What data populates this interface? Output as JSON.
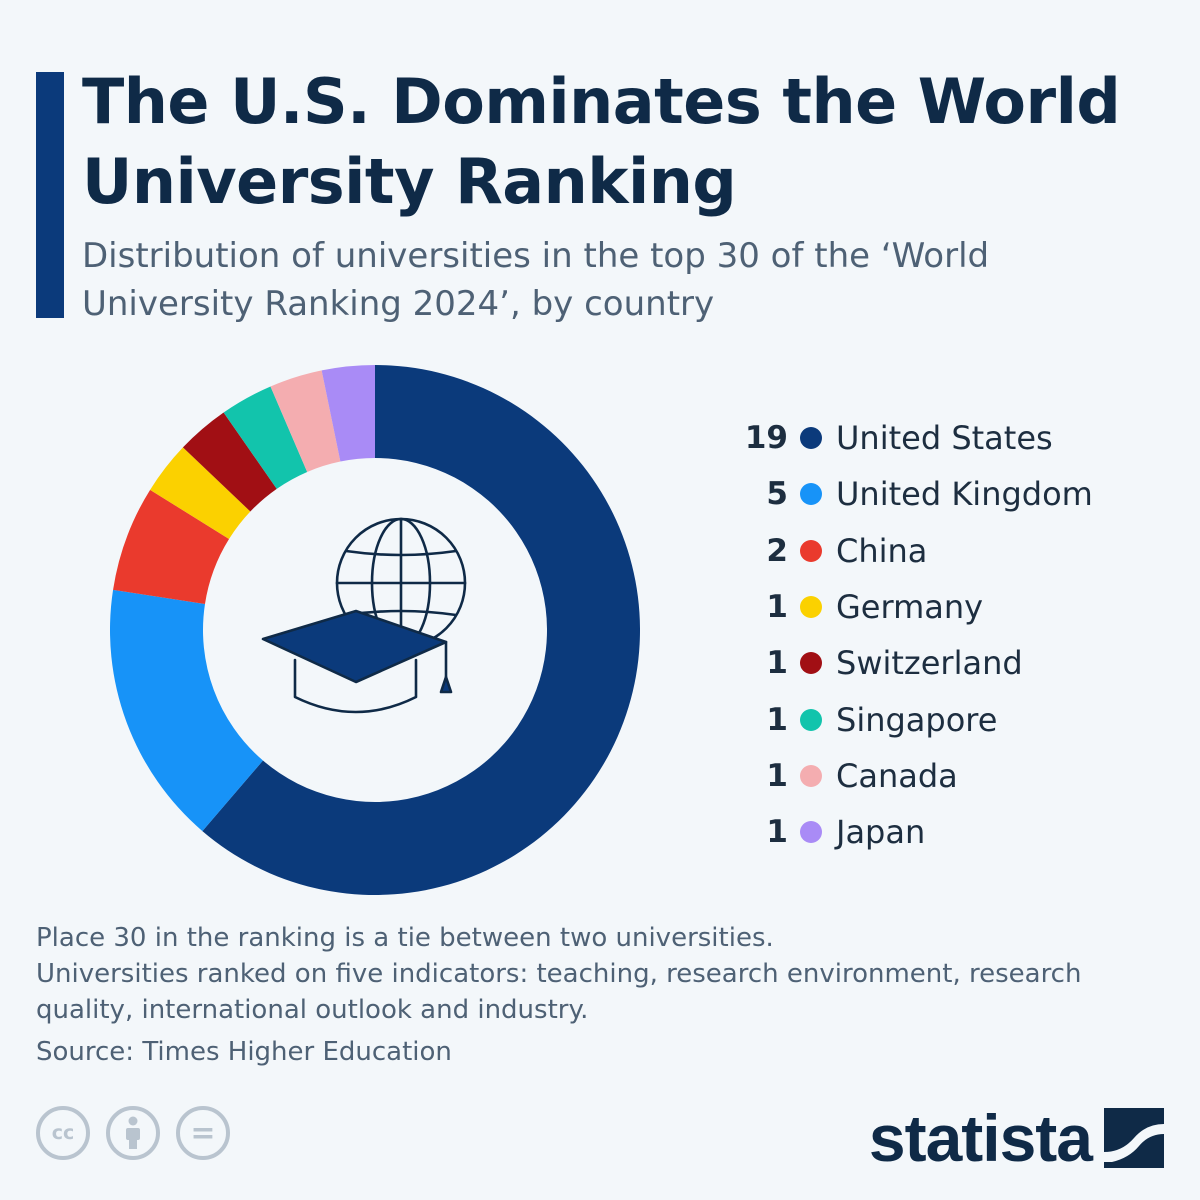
{
  "header": {
    "title": "The U.S. Dominates the World University Ranking",
    "subtitle": "Distribution of universities in the top 30 of the ‘World University Ranking 2024’, by country"
  },
  "center_icon": "graduation-cap-globe-icon",
  "chart_data": {
    "type": "pie",
    "donut": true,
    "legend_position": "right",
    "categories": [
      "United States",
      "United Kingdom",
      "China",
      "Germany",
      "Switzerland",
      "Singapore",
      "Canada",
      "Japan"
    ],
    "values": [
      19,
      5,
      2,
      1,
      1,
      1,
      1,
      1
    ],
    "colors": [
      "#0b3a7b",
      "#1793f8",
      "#ea3a2d",
      "#fbd100",
      "#a10f14",
      "#12c4ac",
      "#f4adb0",
      "#a98bf6"
    ],
    "value_labels": [
      "19",
      "5",
      "2",
      "1",
      "1",
      "1",
      "1",
      "1"
    ]
  },
  "notes": [
    "Place 30 in the ranking is a tie between two universities.",
    "Universities ranked on five indicators: teaching, research environment, research quality, international outlook and industry."
  ],
  "source": "Source: Times Higher Education",
  "license_icons": [
    {
      "name": "cc-icon",
      "glyph": "cc"
    },
    {
      "name": "attribution-icon",
      "glyph": ""
    },
    {
      "name": "no-derivatives-icon",
      "glyph": "="
    }
  ],
  "brand": {
    "name": "statista",
    "logo_icon": "statista-logo-icon"
  }
}
